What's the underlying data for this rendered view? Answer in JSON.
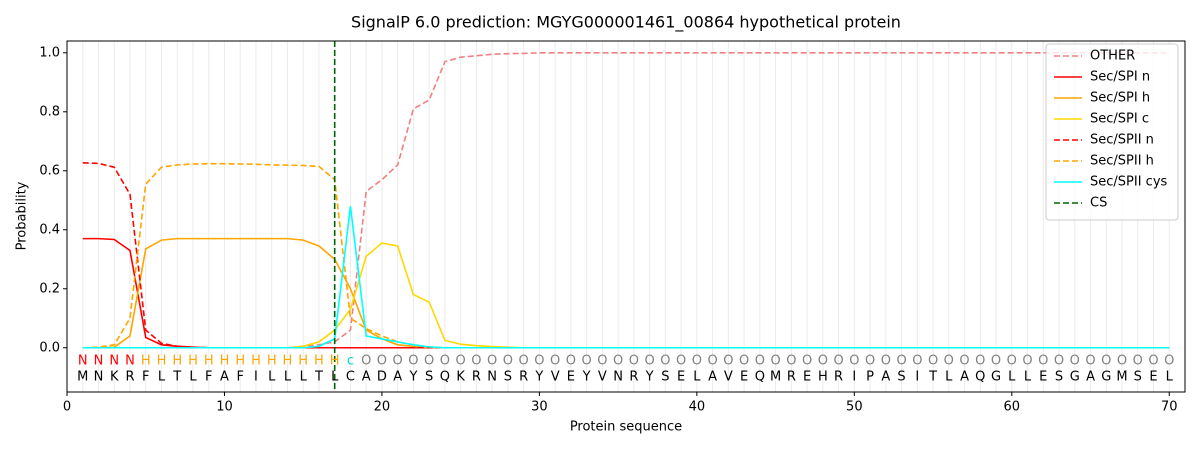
{
  "chart_data": {
    "type": "line",
    "title": "SignalP 6.0 prediction: MGYG000001461_00864 hypothetical protein",
    "x_label": "Protein sequence",
    "y_label": "Probability",
    "xlim": [
      0,
      71
    ],
    "ylim": [
      -0.15,
      1.04
    ],
    "xticks": [
      0,
      10,
      20,
      30,
      40,
      50,
      60,
      70
    ],
    "yticks": [
      {
        "value": 0,
        "label": "0.0"
      },
      {
        "value": 0.2,
        "label": "0.2"
      },
      {
        "value": 0.4,
        "label": "0.4"
      },
      {
        "value": 0.6,
        "label": "0.6"
      },
      {
        "value": 0.8,
        "label": "0.8"
      },
      {
        "value": 1.0,
        "label": "1.0"
      }
    ],
    "x": [
      1,
      2,
      3,
      4,
      5,
      6,
      7,
      8,
      9,
      10,
      11,
      12,
      13,
      14,
      15,
      16,
      17,
      18,
      19,
      20,
      21,
      22,
      23,
      24,
      25,
      26,
      27,
      28,
      29,
      30,
      31,
      32,
      33,
      34,
      35,
      36,
      37,
      38,
      39,
      40,
      41,
      42,
      43,
      44,
      45,
      46,
      47,
      48,
      49,
      50,
      51,
      52,
      53,
      54,
      55,
      56,
      57,
      58,
      59,
      60,
      61,
      62,
      63,
      64,
      65,
      66,
      67,
      68,
      69,
      70
    ],
    "residues": [
      "M",
      "N",
      "K",
      "R",
      "F",
      "L",
      "T",
      "L",
      "F",
      "A",
      "F",
      "I",
      "L",
      "L",
      "L",
      "T",
      "L",
      "C",
      "A",
      "D",
      "A",
      "Y",
      "S",
      "Q",
      "K",
      "R",
      "N",
      "S",
      "R",
      "Y",
      "V",
      "E",
      "Y",
      "V",
      "N",
      "R",
      "Y",
      "S",
      "E",
      "L",
      "A",
      "V",
      "E",
      "Q",
      "M",
      "R",
      "E",
      "H",
      "R",
      "I",
      "P",
      "A",
      "S",
      "I",
      "T",
      "L",
      "A",
      "Q",
      "G",
      "L",
      "L",
      "E",
      "S",
      "G",
      "A",
      "G",
      "M",
      "S",
      "E",
      "L"
    ],
    "labels": [
      "N",
      "N",
      "N",
      "N",
      "H",
      "H",
      "H",
      "H",
      "H",
      "H",
      "H",
      "H",
      "H",
      "H",
      "H",
      "H",
      "H",
      "c",
      "O",
      "O",
      "O",
      "O",
      "O",
      "O",
      "O",
      "O",
      "O",
      "O",
      "O",
      "O",
      "O",
      "O",
      "O",
      "O",
      "O",
      "O",
      "O",
      "O",
      "O",
      "O",
      "O",
      "O",
      "O",
      "O",
      "O",
      "O",
      "O",
      "O",
      "O",
      "O",
      "O",
      "O",
      "O",
      "O",
      "O",
      "O",
      "O",
      "O",
      "O",
      "O",
      "O",
      "O",
      "O",
      "O",
      "O",
      "O",
      "O",
      "O",
      "O",
      "O"
    ],
    "label_colors": {
      "N": "#ff0000",
      "H": "#ffa500",
      "c": "#00d5d5",
      "O": "#808080"
    },
    "legend": "upper right",
    "series": [
      {
        "name": "OTHER",
        "color": "#f08080",
        "dashed": true,
        "values": [
          0,
          0,
          0,
          0,
          0,
          0,
          0,
          0,
          0,
          0,
          0,
          0,
          0,
          0,
          0.005,
          0.01,
          0.02,
          0.06,
          0.53,
          0.57,
          0.62,
          0.81,
          0.84,
          0.97,
          0.985,
          0.99,
          0.995,
          0.997,
          0.998,
          1,
          1,
          1,
          1,
          1,
          1,
          1,
          1,
          1,
          1,
          1,
          1,
          1,
          1,
          1,
          1,
          1,
          1,
          1,
          1,
          1,
          1,
          1,
          1,
          1,
          1,
          1,
          1,
          1,
          1,
          1,
          1,
          1,
          1,
          1,
          1,
          1,
          1,
          1,
          1,
          1
        ]
      },
      {
        "name": "Sec/SPI n",
        "color": "#ff0000",
        "dashed": false,
        "values": [
          0.37,
          0.37,
          0.367,
          0.33,
          0.035,
          0.01,
          0.005,
          0.002,
          0,
          0,
          0,
          0,
          0,
          0,
          0,
          0,
          0,
          0,
          0,
          0,
          0,
          0,
          0,
          0,
          0,
          0,
          0,
          0,
          0,
          0,
          0,
          0,
          0,
          0,
          0,
          0,
          0,
          0,
          0,
          0,
          0,
          0,
          0,
          0,
          0,
          0,
          0,
          0,
          0,
          0,
          0,
          0,
          0,
          0,
          0,
          0,
          0,
          0,
          0,
          0,
          0,
          0,
          0,
          0,
          0,
          0,
          0,
          0,
          0,
          0
        ]
      },
      {
        "name": "Sec/SPI h",
        "color": "#ffa500",
        "dashed": false,
        "values": [
          0,
          0,
          0.002,
          0.04,
          0.335,
          0.365,
          0.37,
          0.37,
          0.37,
          0.37,
          0.37,
          0.37,
          0.37,
          0.37,
          0.365,
          0.345,
          0.3,
          0.2,
          0.06,
          0.03,
          0.01,
          0.005,
          0,
          0,
          0,
          0,
          0,
          0,
          0,
          0,
          0,
          0,
          0,
          0,
          0,
          0,
          0,
          0,
          0,
          0,
          0,
          0,
          0,
          0,
          0,
          0,
          0,
          0,
          0,
          0,
          0,
          0,
          0,
          0,
          0,
          0,
          0,
          0,
          0,
          0,
          0,
          0,
          0,
          0,
          0,
          0,
          0,
          0,
          0,
          0
        ]
      },
      {
        "name": "Sec/SPI c",
        "color": "#ffd700",
        "dashed": false,
        "values": [
          0,
          0,
          0,
          0,
          0,
          0,
          0,
          0,
          0,
          0,
          0,
          0,
          0,
          0,
          0.005,
          0.02,
          0.06,
          0.13,
          0.31,
          0.355,
          0.345,
          0.18,
          0.155,
          0.025,
          0.012,
          0.007,
          0.004,
          0.002,
          0,
          0,
          0,
          0,
          0,
          0,
          0,
          0,
          0,
          0,
          0,
          0,
          0,
          0,
          0,
          0,
          0,
          0,
          0,
          0,
          0,
          0,
          0,
          0,
          0,
          0,
          0,
          0,
          0,
          0,
          0,
          0,
          0,
          0,
          0,
          0,
          0,
          0,
          0,
          0,
          0,
          0
        ]
      },
      {
        "name": "Sec/SPII n",
        "color": "#ff0000",
        "dashed": true,
        "values": [
          0.627,
          0.625,
          0.612,
          0.52,
          0.06,
          0.015,
          0.005,
          0.002,
          0,
          0,
          0,
          0,
          0,
          0,
          0,
          0,
          0,
          0,
          0,
          0,
          0,
          0,
          0,
          0,
          0,
          0,
          0,
          0,
          0,
          0,
          0,
          0,
          0,
          0,
          0,
          0,
          0,
          0,
          0,
          0,
          0,
          0,
          0,
          0,
          0,
          0,
          0,
          0,
          0,
          0,
          0,
          0,
          0,
          0,
          0,
          0,
          0,
          0,
          0,
          0,
          0,
          0,
          0,
          0,
          0,
          0,
          0,
          0,
          0,
          0
        ]
      },
      {
        "name": "Sec/SPII h",
        "color": "#ffa500",
        "dashed": true,
        "values": [
          0,
          0.002,
          0.01,
          0.1,
          0.555,
          0.612,
          0.62,
          0.623,
          0.624,
          0.624,
          0.623,
          0.622,
          0.62,
          0.619,
          0.618,
          0.615,
          0.57,
          0.1,
          0.065,
          0.04,
          0.02,
          0.01,
          0.003,
          0,
          0,
          0,
          0,
          0,
          0,
          0,
          0,
          0,
          0,
          0,
          0,
          0,
          0,
          0,
          0,
          0,
          0,
          0,
          0,
          0,
          0,
          0,
          0,
          0,
          0,
          0,
          0,
          0,
          0,
          0,
          0,
          0,
          0,
          0,
          0,
          0,
          0,
          0,
          0,
          0,
          0,
          0,
          0,
          0,
          0,
          0
        ]
      },
      {
        "name": "Sec/SPII cys",
        "color": "#00ffff",
        "dashed": false,
        "values": [
          0,
          0,
          0,
          0,
          0,
          0,
          0,
          0,
          0,
          0,
          0,
          0,
          0,
          0,
          0,
          0.005,
          0.03,
          0.48,
          0.04,
          0.03,
          0.02,
          0.01,
          0.003,
          0,
          0,
          0,
          0,
          0,
          0,
          0,
          0,
          0,
          0,
          0,
          0,
          0,
          0,
          0,
          0,
          0,
          0,
          0,
          0,
          0,
          0,
          0,
          0,
          0,
          0,
          0,
          0,
          0,
          0,
          0,
          0,
          0,
          0,
          0,
          0,
          0,
          0,
          0,
          0,
          0,
          0,
          0,
          0,
          0,
          0,
          0
        ]
      }
    ],
    "cs": {
      "name": "CS",
      "color": "#006400",
      "x": 17
    }
  }
}
